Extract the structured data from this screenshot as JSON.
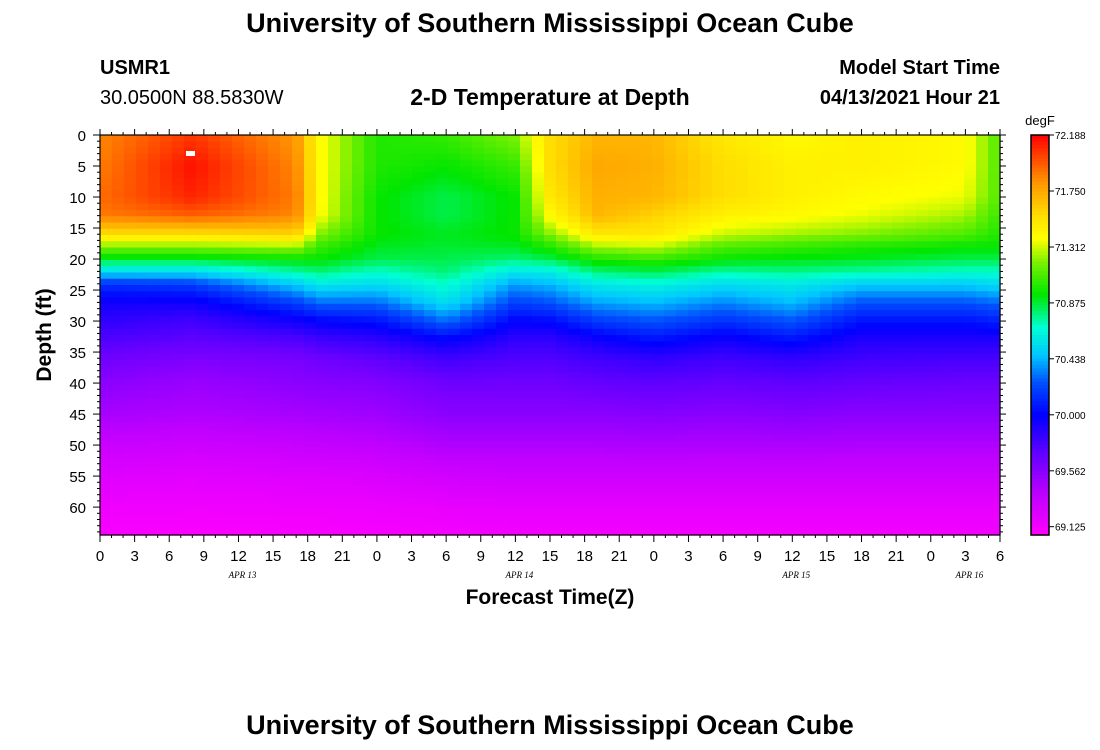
{
  "header": {
    "title": "University of Southern Mississippi Ocean Cube",
    "station_id": "USMR1",
    "coords": "30.0500N  88.5830W",
    "subtitle": "2-D Temperature at Depth",
    "start_label": "Model Start Time",
    "start_value": "04/13/2021 Hour 21"
  },
  "footer": {
    "title": "University of Southern Mississippi Ocean Cube"
  },
  "chart_data": {
    "type": "heatmap",
    "title": "2-D Temperature at Depth",
    "xlabel": "Forecast Time(Z)",
    "ylabel": "Depth (ft)",
    "units": "degF",
    "x_hours": [
      0,
      3,
      6,
      9,
      12,
      15,
      18,
      21,
      24,
      27,
      30,
      33,
      36,
      39,
      42,
      45,
      48,
      51,
      54,
      57,
      60,
      63,
      66,
      69,
      72,
      75,
      78
    ],
    "x_tick_labels": [
      "0",
      "3",
      "6",
      "9",
      "12",
      "15",
      "18",
      "21",
      "0",
      "3",
      "6",
      "9",
      "12",
      "15",
      "18",
      "21",
      "0",
      "3",
      "6",
      "9",
      "12",
      "15",
      "18",
      "21",
      "0",
      "3",
      "6"
    ],
    "date_labels": [
      {
        "hour": 12,
        "label": "APR 13"
      },
      {
        "hour": 36,
        "label": "APR 14"
      },
      {
        "hour": 60,
        "label": "APR 15"
      },
      {
        "hour": 75,
        "label": "APR 16"
      }
    ],
    "y_ticks": [
      0,
      5,
      10,
      15,
      20,
      25,
      30,
      35,
      40,
      45,
      50,
      55,
      60
    ],
    "xlim": [
      0,
      78
    ],
    "ylim": [
      0,
      64.5
    ],
    "colorbar": {
      "min": 69.06,
      "max": 72.188,
      "tick_values": [
        72.188,
        71.75,
        71.312,
        70.875,
        70.438,
        70.0,
        69.562,
        69.125
      ],
      "tick_labels": [
        "72.188",
        "71.750",
        "71.312",
        "70.875",
        "70.438",
        "70.000",
        "69.562",
        "69.125"
      ]
    },
    "depths_ft": [
      0,
      5,
      10,
      13,
      16,
      18,
      20,
      22,
      24,
      27,
      30,
      33,
      36,
      40,
      45,
      50,
      55,
      60,
      64.5
    ],
    "profiles": [
      {
        "hour": 0,
        "temps": [
          71.85,
          71.88,
          71.92,
          71.88,
          71.55,
          71.2,
          70.9,
          70.55,
          70.15,
          69.95,
          69.85,
          69.75,
          69.65,
          69.55,
          69.45,
          69.32,
          69.22,
          69.14,
          69.09
        ]
      },
      {
        "hour": 8,
        "temps": [
          72.05,
          72.15,
          72.1,
          71.95,
          71.55,
          71.2,
          70.9,
          70.55,
          70.2,
          69.95,
          69.8,
          69.7,
          69.6,
          69.5,
          69.42,
          69.3,
          69.2,
          69.13,
          69.08
        ]
      },
      {
        "hour": 17,
        "temps": [
          71.8,
          71.85,
          71.88,
          71.85,
          71.6,
          71.25,
          70.95,
          70.75,
          70.5,
          70.2,
          69.95,
          69.75,
          69.62,
          69.55,
          69.45,
          69.33,
          69.22,
          69.14,
          69.09
        ]
      },
      {
        "hour": 19,
        "temps": [
          71.4,
          71.4,
          71.4,
          71.38,
          71.2,
          71.05,
          70.95,
          70.8,
          70.6,
          70.3,
          70.0,
          69.8,
          69.65,
          69.56,
          69.46,
          69.34,
          69.22,
          69.14,
          69.09
        ]
      },
      {
        "hour": 24,
        "temps": [
          71.0,
          71.0,
          70.95,
          70.95,
          70.95,
          70.9,
          70.85,
          70.7,
          70.55,
          70.3,
          70.05,
          69.85,
          69.7,
          69.58,
          69.48,
          69.36,
          69.24,
          69.15,
          69.1
        ]
      },
      {
        "hour": 30,
        "temps": [
          71.05,
          70.95,
          70.85,
          70.85,
          70.9,
          70.88,
          70.85,
          70.8,
          70.7,
          70.55,
          70.3,
          70.0,
          69.8,
          69.65,
          69.55,
          69.42,
          69.28,
          69.17,
          69.11
        ]
      },
      {
        "hour": 36,
        "temps": [
          71.2,
          71.05,
          70.95,
          70.95,
          70.95,
          70.9,
          70.8,
          70.6,
          70.4,
          70.2,
          70.0,
          69.85,
          69.75,
          69.65,
          69.55,
          69.42,
          69.3,
          69.18,
          69.12
        ]
      },
      {
        "hour": 39,
        "temps": [
          71.55,
          71.55,
          71.5,
          71.4,
          71.2,
          71.0,
          70.85,
          70.62,
          70.45,
          70.25,
          70.02,
          69.85,
          69.75,
          69.65,
          69.55,
          69.42,
          69.3,
          69.18,
          69.12
        ]
      },
      {
        "hour": 43,
        "temps": [
          71.7,
          71.75,
          71.72,
          71.7,
          71.5,
          71.25,
          71.0,
          70.8,
          70.6,
          70.4,
          70.18,
          69.95,
          69.8,
          69.68,
          69.55,
          69.42,
          69.3,
          69.18,
          69.12
        ]
      },
      {
        "hour": 48,
        "temps": [
          71.7,
          71.72,
          71.7,
          71.6,
          71.5,
          71.3,
          71.05,
          70.85,
          70.65,
          70.45,
          70.25,
          70.05,
          69.85,
          69.7,
          69.57,
          69.43,
          69.3,
          69.18,
          69.12
        ]
      },
      {
        "hour": 54,
        "temps": [
          71.5,
          71.55,
          71.55,
          71.45,
          71.3,
          71.1,
          70.95,
          70.75,
          70.55,
          70.35,
          70.15,
          69.95,
          69.8,
          69.68,
          69.55,
          69.42,
          69.3,
          69.18,
          69.12
        ]
      },
      {
        "hour": 60,
        "temps": [
          71.4,
          71.45,
          71.45,
          71.4,
          71.25,
          71.05,
          70.92,
          70.78,
          70.6,
          70.45,
          70.25,
          70.05,
          69.85,
          69.7,
          69.57,
          69.43,
          69.3,
          69.18,
          69.12
        ]
      },
      {
        "hour": 66,
        "temps": [
          71.45,
          71.45,
          71.4,
          71.35,
          71.2,
          71.0,
          70.9,
          70.75,
          70.5,
          70.25,
          70.05,
          69.9,
          69.8,
          69.68,
          69.55,
          69.42,
          69.3,
          69.18,
          69.12
        ]
      },
      {
        "hour": 75,
        "temps": [
          71.4,
          71.4,
          71.35,
          71.25,
          71.1,
          70.95,
          70.85,
          70.7,
          70.5,
          70.25,
          70.05,
          69.9,
          69.78,
          69.66,
          69.55,
          69.42,
          69.3,
          69.18,
          69.12
        ]
      },
      {
        "hour": 78,
        "temps": [
          71.1,
          71.1,
          71.1,
          71.05,
          71.0,
          70.95,
          70.85,
          70.7,
          70.55,
          70.3,
          70.1,
          69.9,
          69.78,
          69.66,
          69.55,
          69.42,
          69.3,
          69.18,
          69.12
        ]
      }
    ]
  }
}
